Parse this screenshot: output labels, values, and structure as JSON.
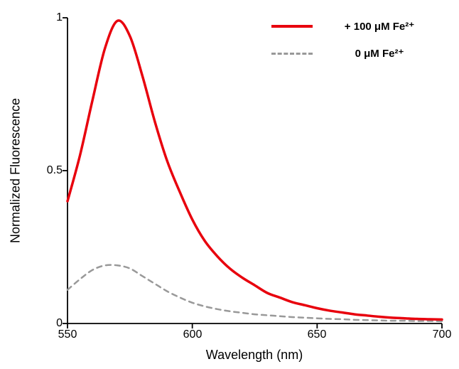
{
  "chart_data": {
    "type": "line",
    "title": "",
    "xlabel": "Wavelength (nm)",
    "ylabel": "Normalized Fluorescence",
    "xlim": [
      550,
      700
    ],
    "ylim": [
      0,
      1
    ],
    "x_ticks": [
      "550",
      "600",
      "650",
      "700"
    ],
    "x_tick_values": [
      550,
      600,
      650,
      700
    ],
    "y_ticks": [
      "0",
      "0.5",
      "1"
    ],
    "y_tick_values": [
      0,
      0.5,
      1
    ],
    "grid": false,
    "legend_position": "top-right",
    "x": [
      550,
      555,
      560,
      565,
      570,
      575,
      580,
      585,
      590,
      595,
      600,
      605,
      610,
      615,
      620,
      625,
      630,
      635,
      640,
      645,
      650,
      655,
      660,
      665,
      670,
      675,
      680,
      685,
      690,
      695,
      700
    ],
    "series": [
      {
        "name": "+ 100 μM Fe²⁺",
        "color": "#e8000d",
        "style": "solid",
        "width": 3.5,
        "values": [
          0.4,
          0.55,
          0.73,
          0.9,
          0.99,
          0.94,
          0.81,
          0.66,
          0.53,
          0.43,
          0.34,
          0.27,
          0.22,
          0.18,
          0.15,
          0.125,
          0.1,
          0.085,
          0.07,
          0.06,
          0.05,
          0.042,
          0.036,
          0.03,
          0.026,
          0.022,
          0.019,
          0.017,
          0.015,
          0.014,
          0.013
        ]
      },
      {
        "name": "0 μM Fe²⁺",
        "color": "#999999",
        "style": "dashed",
        "width": 2.5,
        "values": [
          0.11,
          0.145,
          0.175,
          0.19,
          0.19,
          0.18,
          0.155,
          0.13,
          0.105,
          0.085,
          0.068,
          0.056,
          0.047,
          0.04,
          0.035,
          0.03,
          0.027,
          0.024,
          0.021,
          0.019,
          0.017,
          0.015,
          0.014,
          0.012,
          0.011,
          0.01,
          0.009,
          0.009,
          0.008,
          0.008,
          0.007
        ]
      }
    ]
  }
}
